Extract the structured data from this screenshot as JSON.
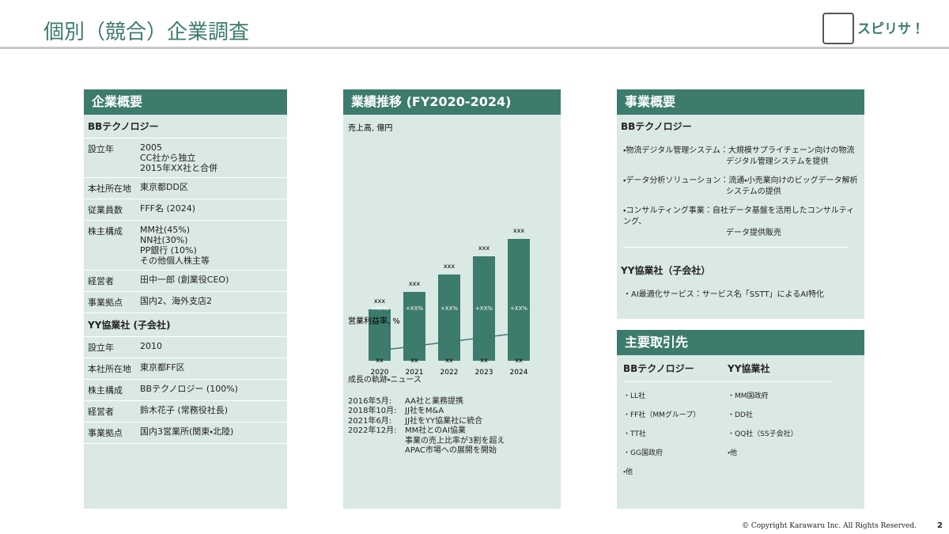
{
  "header": {
    "title": "個別（競合）企業調査",
    "logo_text": "スピリサ！"
  },
  "company_overview": {
    "title": "企業概要",
    "companies": [
      {
        "name": "BBテクノロジー",
        "rows": [
          {
            "label": "設立年",
            "lines": [
              "2005",
              "CC社から独立",
              "2015年XX社と合併"
            ]
          },
          {
            "label": "本社所在地",
            "lines": [
              "東京都DD区"
            ]
          },
          {
            "label": "従業員数",
            "lines": [
              "FFF名 (2024)"
            ]
          },
          {
            "label": "株主構成",
            "lines": [
              "MM社(45%)",
              "NN社(30%)",
              "PP銀行 (10%)",
              "その他個人株主等"
            ]
          },
          {
            "label": "経営者",
            "lines": [
              "田中一郎 (創業役CEO)"
            ]
          },
          {
            "label": "事業拠点",
            "lines": [
              "国内2、海外支店2"
            ]
          }
        ]
      },
      {
        "name": "YY協業社 (子会社)",
        "rows": [
          {
            "label": "設立年",
            "lines": [
              "2010"
            ]
          },
          {
            "label": "本社所在地",
            "lines": [
              "東京都FF区"
            ]
          },
          {
            "label": "株主構成",
            "lines": [
              "BBテクノロジー (100%)"
            ]
          },
          {
            "label": "経営者",
            "lines": [
              "鈴木花子 (常務役社長)"
            ]
          },
          {
            "label": "事業拠点",
            "lines": [
              "国内3営業所(関東・北陸)"
            ]
          }
        ]
      }
    ]
  },
  "performance": {
    "title": "業績推移 (FY2020-2024)",
    "sales": {
      "type": "bar",
      "title": "売上高, 億円",
      "categories": [
        "2020",
        "2021",
        "2022",
        "2023",
        "2024"
      ],
      "values": [
        65,
        87,
        109,
        132,
        154
      ],
      "value_labels": [
        "xxx",
        "xxx",
        "xxx",
        "xxx",
        "xxx"
      ],
      "color": "#3d7b6d",
      "growth_labels": [
        "+XX%",
        "+XX%",
        "+XX%",
        "+XX%",
        "+XX%"
      ]
    },
    "margin": {
      "type": "line",
      "title": "営業利益率, %",
      "values": [
        5,
        6,
        7,
        8,
        9
      ],
      "value_labels": [
        "xx",
        "xx",
        "xx",
        "xx",
        "xx"
      ],
      "color": "#3d7b6d"
    },
    "news": {
      "title": "成長の軌跡・ニュース",
      "items": [
        {
          "date": "2016年5月:",
          "lines": [
            "AA社と業務提携"
          ]
        },
        {
          "date": "2018年10月:",
          "lines": [
            "JJ社をM&A"
          ]
        },
        {
          "date": "2021年6月:",
          "lines": [
            "JJ社をYY協業社に統合"
          ]
        },
        {
          "date": "2022年12月:",
          "lines": [
            "MM社とのAI協業",
            "事業の売上比率が3割を超え",
            "APAC市場への展開を開始"
          ]
        }
      ]
    }
  },
  "business": {
    "title": "事業概要",
    "companies": [
      {
        "name": "BBテクノロジー",
        "items": [
          {
            "head": "・物流デジタル管理システム：",
            "lines": [
              "大規模サプライチェーン向けの物流",
              "デジタル管理システムを提供"
            ]
          },
          {
            "head": "・データ分析ソリューション：",
            "lines": [
              "流通・小売業向けのビッグデータ解析",
              "システムの提供"
            ]
          },
          {
            "head": "・コンサルティング事業：",
            "lines": [
              "自社データ基盤を活用したコンサルティング、",
              "データ提供販売"
            ]
          }
        ]
      },
      {
        "name": "YY協業社（子会社）",
        "items": [
          {
            "head": "・AI最適化サービス：",
            "lines": [
              "サービス名「SSTT」によるAI特化"
            ]
          }
        ]
      }
    ]
  },
  "clients": {
    "title": "主要取引先",
    "columns": [
      {
        "name": "BBテクノロジー",
        "items": [
          "・LL社",
          "・FF社（MMグループ）",
          "・TT社",
          "・GG国政府",
          "・他"
        ]
      },
      {
        "name": "YY協業社",
        "items": [
          "・MM国政府",
          "・DD社",
          "・QQ社（SS子会社）",
          "・他"
        ]
      }
    ]
  },
  "footer": {
    "copyright": "© Copyright Karawaru Inc. All Rights Reserved.",
    "page": 2
  }
}
